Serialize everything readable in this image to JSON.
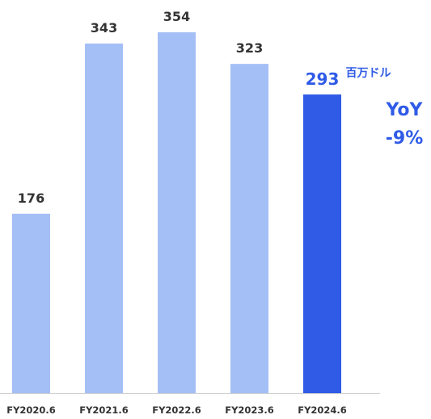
{
  "chart_data": {
    "type": "bar",
    "categories": [
      "FY2020.6",
      "FY2021.6",
      "FY2022.6",
      "FY2023.6",
      "FY2024.6"
    ],
    "values": [
      176,
      343,
      354,
      323,
      293
    ],
    "value_labels": [
      "176",
      "343",
      "354",
      "323",
      "293"
    ],
    "highlight_index": 4,
    "unit": "百万ドル",
    "yoy_label": "YoY",
    "yoy_value": "-9%",
    "title": "",
    "xlabel": "",
    "ylabel": "",
    "ylim": [
      0,
      354
    ],
    "grid": false,
    "colors": {
      "bar": "#a4bff5",
      "highlight": "#2f5be7",
      "axis": "#d0d0d0",
      "label": "#333333"
    }
  }
}
